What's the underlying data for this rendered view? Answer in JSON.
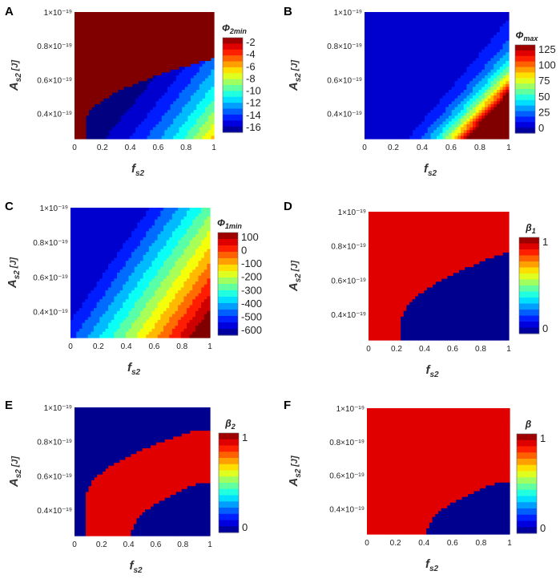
{
  "chart_data": [
    {
      "panel": "A",
      "type": "heatmap",
      "xlabel": "f",
      "xlabel_sub": "s2",
      "ylabel": "A",
      "ylabel_sub": "s2",
      "ylabel_unit": "[J]",
      "x_ticks": [
        "0",
        "0.2",
        "0.4",
        "0.6",
        "0.8",
        "1"
      ],
      "y_ticks": [
        "0.4×10⁻¹⁹",
        "0.6×10⁻¹⁹",
        "0.8×10⁻¹⁹",
        "1×10⁻¹⁹"
      ],
      "xlim": [
        0,
        1
      ],
      "ylim": [
        0.25,
        1.0
      ],
      "colorbar": {
        "symbol": "Φ",
        "sub": "2min",
        "ticks": [
          "-2",
          "-4",
          "-6",
          "-8",
          "-10",
          "-12",
          "-14",
          "-16"
        ]
      }
    },
    {
      "panel": "B",
      "type": "heatmap",
      "xlabel": "f",
      "xlabel_sub": "s2",
      "ylabel": "A",
      "ylabel_sub": "s2",
      "ylabel_unit": "[J]",
      "x_ticks": [
        "0",
        "0.2",
        "0.4",
        "0.6",
        "0.8",
        "1"
      ],
      "y_ticks": [
        "0.4×10⁻¹⁹",
        "0.6×10⁻¹⁹",
        "0.8×10⁻¹⁹",
        "1×10⁻¹⁹"
      ],
      "xlim": [
        0,
        1
      ],
      "ylim": [
        0.25,
        1.0
      ],
      "colorbar": {
        "symbol": "Φ",
        "sub": "max",
        "ticks": [
          "125",
          "100",
          "75",
          "50",
          "25",
          "0"
        ]
      }
    },
    {
      "panel": "C",
      "type": "heatmap",
      "xlabel": "f",
      "xlabel_sub": "s2",
      "ylabel": "A",
      "ylabel_sub": "s2",
      "ylabel_unit": "[J]",
      "x_ticks": [
        "0",
        "0.2",
        "0.4",
        "0.6",
        "0.8",
        "1"
      ],
      "y_ticks": [
        "0.4×10⁻¹⁹",
        "0.6×10⁻¹⁹",
        "0.8×10⁻¹⁹",
        "1×10⁻¹⁹"
      ],
      "xlim": [
        0,
        1
      ],
      "ylim": [
        0.25,
        1.0
      ],
      "colorbar": {
        "symbol": "Φ",
        "sub": "1min",
        "ticks": [
          "100",
          "0",
          "-100",
          "-200",
          "-300",
          "-400",
          "-500",
          "-600"
        ]
      }
    },
    {
      "panel": "D",
      "type": "heatmap",
      "xlabel": "f",
      "xlabel_sub": "s2",
      "ylabel": "A",
      "ylabel_sub": "s2",
      "ylabel_unit": "[J]",
      "x_ticks": [
        "0",
        "0.2",
        "0.4",
        "0.6",
        "0.8",
        "1"
      ],
      "y_ticks": [
        "0.4×10⁻¹⁹",
        "0.6×10⁻¹⁹",
        "0.8×10⁻¹⁹",
        "1×10⁻¹⁹"
      ],
      "xlim": [
        0,
        1
      ],
      "ylim": [
        0.25,
        1.0
      ],
      "colorbar": {
        "symbol": "β",
        "sub": "1",
        "ticks": [
          "1",
          "0"
        ]
      }
    },
    {
      "panel": "E",
      "type": "heatmap",
      "xlabel": "f",
      "xlabel_sub": "s2",
      "ylabel": "A",
      "ylabel_sub": "s2",
      "ylabel_unit": "[J]",
      "x_ticks": [
        "0",
        "0.2",
        "0.4",
        "0.6",
        "0.8",
        "1"
      ],
      "y_ticks": [
        "0.4×10⁻¹⁹",
        "0.6×10⁻¹⁹",
        "0.8×10⁻¹⁹",
        "1×10⁻¹⁹"
      ],
      "xlim": [
        0,
        1
      ],
      "ylim": [
        0.25,
        1.0
      ],
      "colorbar": {
        "symbol": "β",
        "sub": "2",
        "ticks": [
          "1",
          "0"
        ]
      }
    },
    {
      "panel": "F",
      "type": "heatmap",
      "xlabel": "f",
      "xlabel_sub": "s2",
      "ylabel": "A",
      "ylabel_sub": "s2",
      "ylabel_unit": "[J]",
      "x_ticks": [
        "0",
        "0.2",
        "0.4",
        "0.6",
        "0.8",
        "1"
      ],
      "y_ticks": [
        "0.4×10⁻¹⁹",
        "0.6×10⁻¹⁹",
        "0.8×10⁻¹⁹",
        "1×10⁻¹⁹"
      ],
      "xlim": [
        0,
        1
      ],
      "ylim": [
        0.25,
        1.0
      ],
      "colorbar": {
        "symbol": "β",
        "sub": "",
        "ticks": [
          "1",
          "0"
        ]
      }
    }
  ],
  "colors": {
    "jet_dark_blue": "#00008f",
    "jet_blue": "#0050ff",
    "jet_cyan": "#20e0e0",
    "jet_yellow": "#f0f020",
    "jet_red": "#e00000"
  }
}
